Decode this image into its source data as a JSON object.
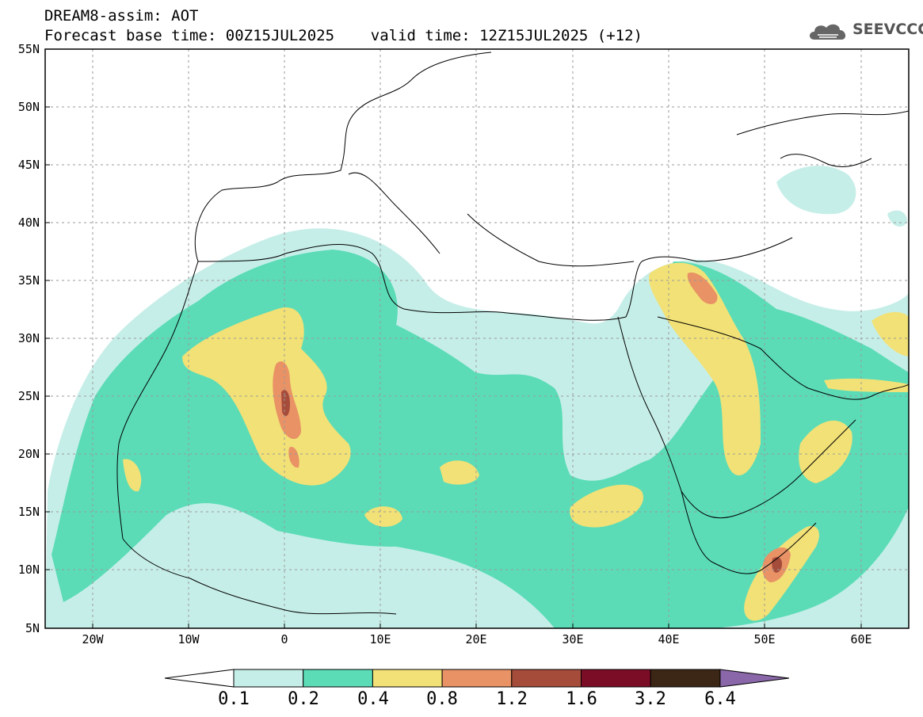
{
  "header": {
    "line1": "DREAM8-assim: AOT",
    "line2": "Forecast base time: 00Z15JUL2025    valid time: 12Z15JUL2025 (+12)"
  },
  "logo": {
    "text": "SEEVCCC",
    "icon": "cloud-logo-icon"
  },
  "map": {
    "lat_labels": [
      "55N",
      "50N",
      "45N",
      "40N",
      "35N",
      "30N",
      "25N",
      "20N",
      "15N",
      "10N",
      "5N"
    ],
    "lon_labels": [
      "20W",
      "10W",
      "0",
      "10E",
      "20E",
      "30E",
      "40E",
      "50E",
      "60E"
    ],
    "extent": {
      "lon_min": -25,
      "lon_max": 65,
      "lat_min": 5,
      "lat_max": 55
    }
  },
  "colorbar": {
    "levels": [
      "0.1",
      "0.2",
      "0.4",
      "0.8",
      "1.2",
      "1.6",
      "3.2",
      "6.4"
    ],
    "colors": [
      "#ffffff",
      "#c6eee8",
      "#5bdcb7",
      "#f2e176",
      "#e89266",
      "#a64c3b",
      "#7b0d27",
      "#3c2716",
      "#8a67a8"
    ]
  },
  "colors": {
    "grid": "#9a9a9a",
    "border": "#000000"
  }
}
